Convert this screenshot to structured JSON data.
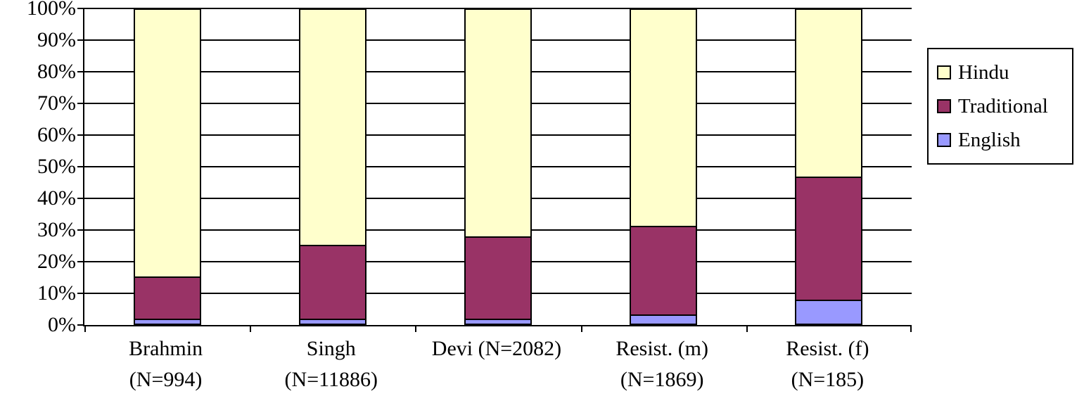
{
  "chart_data": {
    "type": "bar",
    "stacked": true,
    "percent_stacked": true,
    "title": "",
    "xlabel": "",
    "ylabel": "",
    "grid": true,
    "categories": [
      {
        "line1": "Brahmin",
        "line2": "(N=994)"
      },
      {
        "line1": "Singh",
        "line2": "(N=11886)"
      },
      {
        "line1": "Devi (N=2082)",
        "line2": ""
      },
      {
        "line1": "Resist. (m)",
        "line2": "(N=1869)"
      },
      {
        "line1": "Resist. (f)",
        "line2": "(N=185)"
      }
    ],
    "series": [
      {
        "name": "English",
        "color": "#9999FF",
        "values": [
          1.5,
          1.5,
          1.5,
          3,
          7.5
        ]
      },
      {
        "name": "Traditional",
        "color": "#993366",
        "values": [
          13.5,
          23.5,
          26,
          28,
          39
        ]
      },
      {
        "name": "Hindu",
        "color": "#FFFFCC",
        "values": [
          85,
          75,
          72.5,
          69,
          53.5
        ]
      }
    ],
    "y_axis": {
      "min": 0,
      "max": 100,
      "step": 10,
      "tick_labels": [
        "0%",
        "10%",
        "20%",
        "30%",
        "40%",
        "50%",
        "60%",
        "70%",
        "80%",
        "90%",
        "100%"
      ]
    },
    "legend": {
      "position": "right",
      "items": [
        {
          "label": "Hindu",
          "color": "#FFFFCC"
        },
        {
          "label": "Traditional",
          "color": "#993366"
        },
        {
          "label": "English",
          "color": "#9999FF"
        }
      ]
    }
  }
}
